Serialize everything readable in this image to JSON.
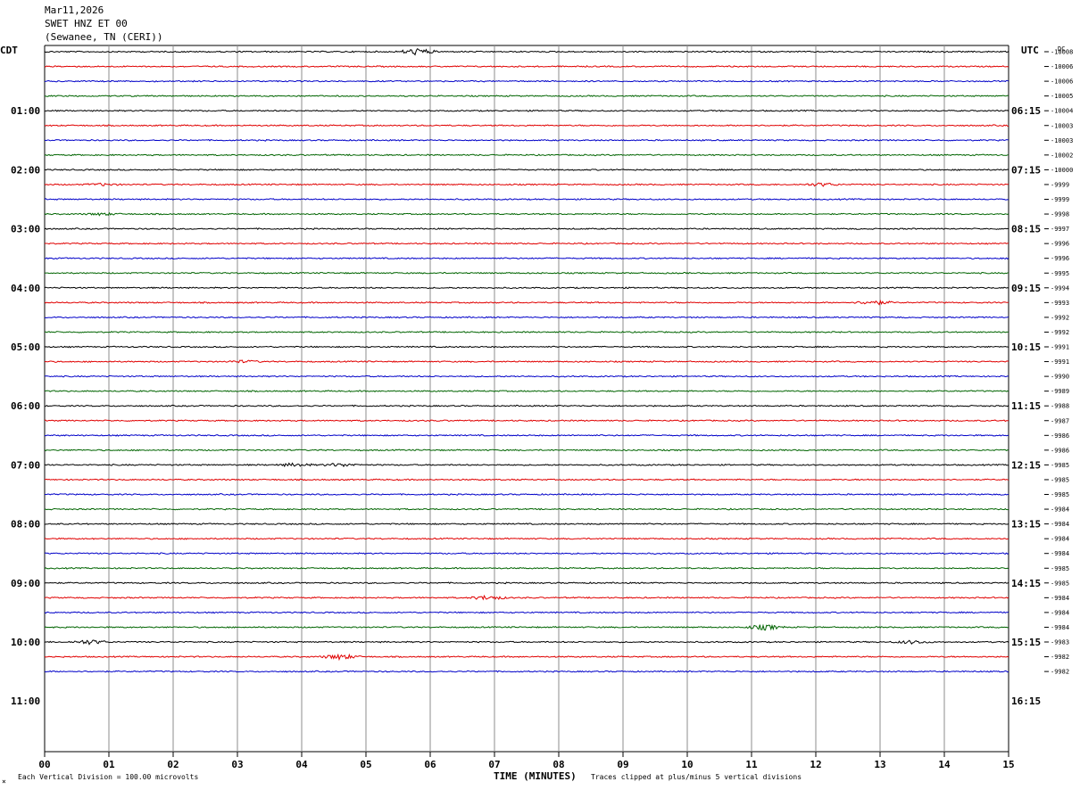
{
  "header": {
    "date": "Mar11,2026",
    "station": "SWET HNZ ET 00",
    "location": "(Sewanee, TN (CERI))"
  },
  "chart_data": {
    "type": "line",
    "title": "SWET HNZ ET 00",
    "left_timezone": "CDT",
    "right_timezone": "UTC",
    "dc_label": "DC",
    "xlabel": "TIME (MINUTES)",
    "x_ticks": [
      "00",
      "01",
      "02",
      "03",
      "04",
      "05",
      "06",
      "07",
      "08",
      "09",
      "10",
      "11",
      "12",
      "13",
      "14",
      "15"
    ],
    "xlim": [
      0,
      15
    ],
    "left_hour_labels": [
      "01:00",
      "02:00",
      "03:00",
      "04:00",
      "05:00",
      "06:00",
      "07:00",
      "08:00",
      "09:00",
      "10:00",
      "11:00"
    ],
    "right_hour_labels": [
      "06:15",
      "07:15",
      "08:15",
      "09:15",
      "10:15",
      "11:15",
      "12:15",
      "13:15",
      "14:15",
      "15:15",
      "16:15"
    ],
    "trace_colors": [
      "#000000",
      "#e00000",
      "#0000c8",
      "#006400"
    ],
    "dc_offsets": [
      "-10008",
      "-10006",
      "-10006",
      "-10005",
      "-10004",
      "-10003",
      "-10003",
      "-10002",
      "-10000",
      "-9999",
      "-9999",
      "-9998",
      "-9997",
      "-9996",
      "-9996",
      "-9995",
      "-9994",
      "-9993",
      "-9992",
      "-9992",
      "-9991",
      "-9991",
      "-9990",
      "-9989",
      "-9988",
      "-9987",
      "-9986",
      "-9986",
      "-9985",
      "-9985",
      "-9985",
      "-9984",
      "-9984",
      "-9984",
      "-9984",
      "-9985",
      "-9985",
      "-9984",
      "-9984",
      "-9984",
      "-9983",
      "-9982",
      "-9982"
    ],
    "events": [
      {
        "trace": 0,
        "minute": 5.8,
        "amplitude": 6
      },
      {
        "trace": 9,
        "minute": 0.9,
        "amplitude": 2
      },
      {
        "trace": 9,
        "minute": 12.1,
        "amplitude": 3
      },
      {
        "trace": 11,
        "minute": 0.9,
        "amplitude": 2
      },
      {
        "trace": 17,
        "minute": 12.9,
        "amplitude": 4
      },
      {
        "trace": 21,
        "minute": 3.1,
        "amplitude": 2
      },
      {
        "trace": 28,
        "minute": 3.9,
        "amplitude": 3
      },
      {
        "trace": 28,
        "minute": 4.6,
        "amplitude": 3
      },
      {
        "trace": 37,
        "minute": 6.9,
        "amplitude": 4
      },
      {
        "trace": 39,
        "minute": 11.2,
        "amplitude": 5
      },
      {
        "trace": 40,
        "minute": 0.7,
        "amplitude": 4
      },
      {
        "trace": 40,
        "minute": 13.5,
        "amplitude": 3
      },
      {
        "trace": 41,
        "minute": 4.6,
        "amplitude": 5
      }
    ],
    "footer_left": "Each Vertical Division = 100.00 microvolts",
    "footer_right": "Traces clipped at plus/minus 5 vertical divisions",
    "grid": true
  }
}
